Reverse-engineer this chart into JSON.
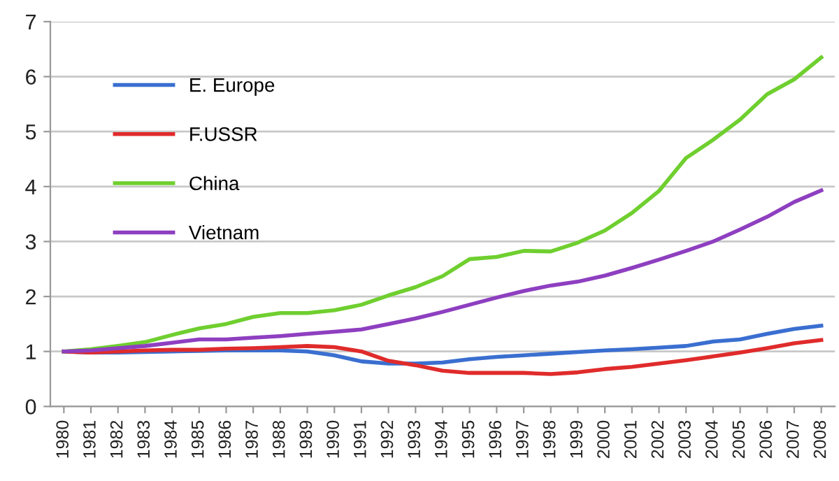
{
  "chart_data": {
    "type": "line",
    "categories": [
      "1980",
      "1981",
      "1982",
      "1983",
      "1984",
      "1985",
      "1986",
      "1987",
      "1988",
      "1989",
      "1990",
      "1991",
      "1992",
      "1993",
      "1994",
      "1995",
      "1996",
      "1997",
      "1998",
      "1999",
      "2000",
      "2001",
      "2002",
      "2003",
      "2004",
      "2005",
      "2006",
      "2007",
      "2008"
    ],
    "series": [
      {
        "name": "E. Europe",
        "color": "#3a6fd0",
        "values": [
          1.0,
          0.98,
          0.98,
          0.99,
          1.0,
          1.01,
          1.02,
          1.02,
          1.02,
          1.0,
          0.93,
          0.82,
          0.78,
          0.78,
          0.8,
          0.86,
          0.9,
          0.93,
          0.96,
          0.99,
          1.02,
          1.04,
          1.07,
          1.1,
          1.18,
          1.22,
          1.32,
          1.41,
          1.47
        ]
      },
      {
        "name": "F.USSR",
        "color": "#e02b2b",
        "values": [
          1.0,
          0.98,
          1.0,
          1.02,
          1.03,
          1.03,
          1.05,
          1.06,
          1.08,
          1.1,
          1.08,
          1.0,
          0.83,
          0.75,
          0.65,
          0.61,
          0.61,
          0.61,
          0.59,
          0.62,
          0.68,
          0.72,
          0.78,
          0.84,
          0.91,
          0.98,
          1.06,
          1.15,
          1.21
        ]
      },
      {
        "name": "China",
        "color": "#6fcf2f",
        "values": [
          1.0,
          1.04,
          1.1,
          1.17,
          1.3,
          1.42,
          1.5,
          1.63,
          1.7,
          1.7,
          1.75,
          1.85,
          2.02,
          2.17,
          2.37,
          2.68,
          2.72,
          2.83,
          2.82,
          2.98,
          3.2,
          3.52,
          3.92,
          4.52,
          4.85,
          5.22,
          5.68,
          5.95,
          6.35
        ]
      },
      {
        "name": "Vietnam",
        "color": "#8e3fc0",
        "values": [
          1.0,
          1.02,
          1.06,
          1.1,
          1.16,
          1.22,
          1.22,
          1.25,
          1.28,
          1.32,
          1.36,
          1.4,
          1.5,
          1.6,
          1.72,
          1.85,
          1.98,
          2.1,
          2.2,
          2.27,
          2.38,
          2.52,
          2.67,
          2.83,
          3.0,
          3.22,
          3.45,
          3.72,
          3.93
        ]
      }
    ],
    "ylim": [
      0,
      7
    ],
    "yticks": [
      0,
      1,
      2,
      3,
      4,
      5,
      6,
      7
    ],
    "grid": "y",
    "legend": "top left",
    "marker": "none",
    "line_style": "solid"
  }
}
